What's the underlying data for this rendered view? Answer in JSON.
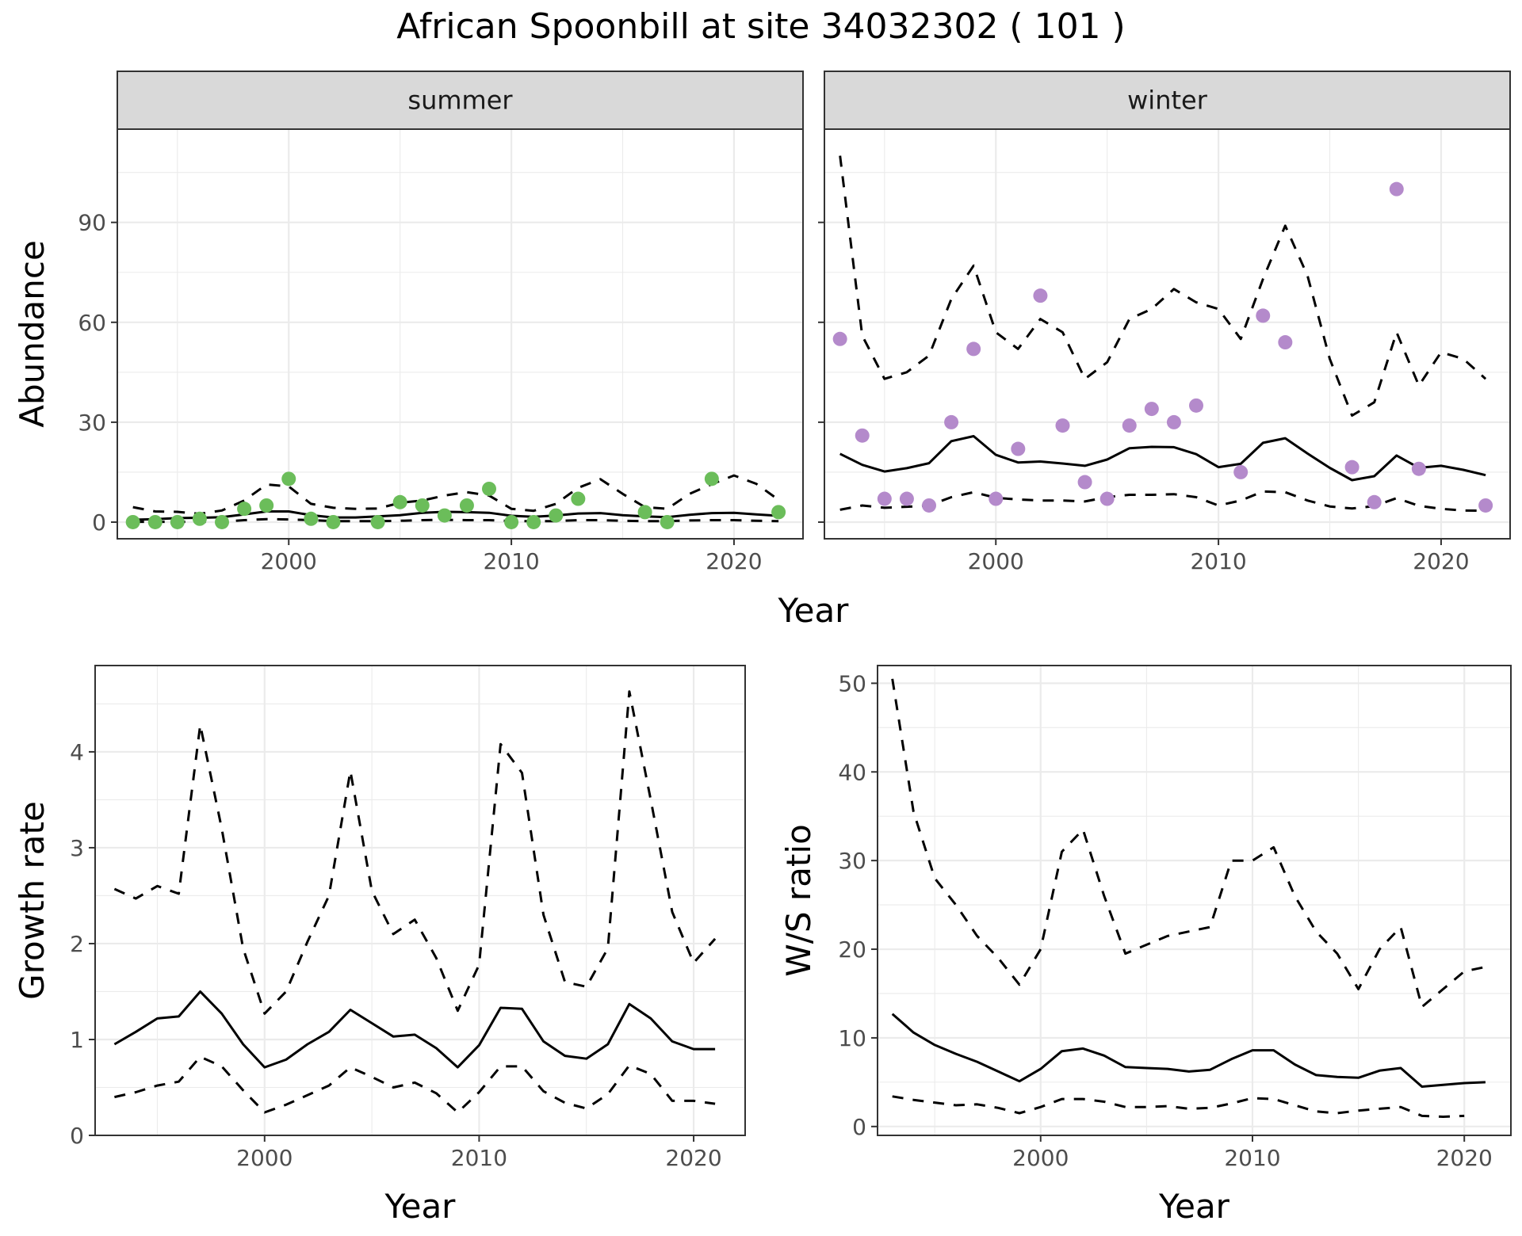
{
  "title": "African Spoonbill at site 34032302 ( 101 )",
  "colors": {
    "summer_points": "#6bbd5a",
    "winter_points": "#b48acb",
    "lines": "#000000"
  },
  "chart_data": [
    {
      "id": "summer",
      "type": "line",
      "strip_label": "summer",
      "xlabel": "Year",
      "ylabel": "Abundance",
      "xlim": [
        1992.3,
        2023.1
      ],
      "ylim": [
        -5,
        118
      ],
      "xticks": [
        2000,
        2010,
        2020
      ],
      "yticks": [
        0,
        30,
        60,
        90
      ],
      "grid": true,
      "x": [
        1993,
        1994,
        1995,
        1996,
        1997,
        1998,
        1999,
        2000,
        2001,
        2002,
        2003,
        2004,
        2005,
        2006,
        2007,
        2008,
        2009,
        2010,
        2011,
        2012,
        2013,
        2014,
        2015,
        2016,
        2017,
        2018,
        2019,
        2020,
        2021,
        2022
      ],
      "series": [
        {
          "role": "mean",
          "values": [
            0.7,
            0.9,
            1.2,
            1.3,
            1.5,
            2.3,
            3.2,
            3.2,
            2.1,
            1.4,
            1.4,
            1.7,
            2.1,
            2.8,
            3.1,
            3.0,
            2.8,
            1.9,
            1.6,
            2.0,
            2.6,
            2.7,
            2.1,
            1.7,
            1.5,
            2.2,
            2.7,
            2.8,
            2.3,
            1.9
          ]
        },
        {
          "role": "ci",
          "values": [
            4.5,
            3.2,
            3.1,
            2.5,
            3.5,
            6.5,
            11.3,
            10.7,
            5.5,
            4.3,
            4.0,
            4.1,
            5.8,
            6.5,
            8.0,
            9.0,
            8.0,
            4.0,
            3.4,
            5.5,
            10.3,
            12.9,
            8.5,
            4.5,
            4.0,
            8.5,
            11.4,
            14.0,
            11.5,
            6.7
          ]
        },
        {
          "role": "ci",
          "values": [
            0.1,
            0.1,
            0.1,
            0.1,
            0.1,
            0.6,
            0.9,
            0.8,
            0.6,
            0.3,
            0.3,
            0.3,
            0.4,
            0.6,
            0.7,
            0.6,
            0.6,
            0.3,
            0.3,
            0.3,
            0.6,
            0.6,
            0.4,
            0.3,
            0.3,
            0.5,
            0.6,
            0.6,
            0.4,
            0.3
          ]
        }
      ],
      "points": {
        "x": [
          1993,
          1994,
          1995,
          1996,
          1997,
          1998,
          1999,
          2000,
          2001,
          2002,
          2004,
          2005,
          2006,
          2007,
          2008,
          2009,
          2010,
          2011,
          2012,
          2013,
          2016,
          2017,
          2019,
          2022
        ],
        "y": [
          0,
          0,
          0,
          1,
          0,
          4,
          5,
          13,
          1,
          0,
          0,
          6,
          5,
          2,
          5,
          10,
          0,
          0,
          2,
          7,
          3,
          0,
          13,
          3
        ]
      }
    },
    {
      "id": "winter",
      "type": "line",
      "strip_label": "winter",
      "xlabel": "Year",
      "ylabel": "Abundance",
      "xlim": [
        1992.3,
        2023.1
      ],
      "ylim": [
        -5,
        118
      ],
      "xticks": [
        2000,
        2010,
        2020
      ],
      "yticks": [
        0,
        30,
        60,
        90
      ],
      "grid": true,
      "x": [
        1993,
        1994,
        1995,
        1996,
        1997,
        1998,
        1999,
        2000,
        2001,
        2002,
        2003,
        2004,
        2005,
        2006,
        2007,
        2008,
        2009,
        2010,
        2011,
        2012,
        2013,
        2014,
        2015,
        2016,
        2017,
        2018,
        2019,
        2020,
        2021,
        2022
      ],
      "series": [
        {
          "role": "mean",
          "values": [
            20.5,
            17.2,
            15.2,
            16.2,
            17.7,
            24.3,
            25.8,
            20.2,
            17.9,
            18.2,
            17.6,
            16.9,
            18.8,
            22.2,
            22.6,
            22.5,
            20.4,
            16.5,
            17.5,
            23.8,
            25.2,
            20.6,
            16.3,
            12.6,
            13.8,
            20.0,
            16.3,
            16.9,
            15.7,
            14.1
          ]
        },
        {
          "role": "ci",
          "values": [
            110,
            56,
            43,
            45,
            50,
            67,
            77,
            57,
            52,
            61,
            57,
            43,
            48,
            61,
            64,
            70,
            66,
            64,
            55,
            73,
            89,
            74,
            49,
            32,
            36,
            57,
            41,
            51,
            49,
            43
          ]
        },
        {
          "role": "ci",
          "values": [
            3.7,
            5.0,
            4.3,
            4.6,
            5.0,
            7.5,
            9.0,
            7.3,
            6.8,
            6.5,
            6.5,
            6.2,
            7.5,
            8.2,
            8.2,
            8.4,
            7.5,
            5.0,
            6.5,
            9.2,
            9.0,
            6.5,
            4.7,
            4.1,
            4.8,
            7.2,
            4.9,
            4.0,
            3.5,
            3.4
          ]
        }
      ],
      "points": {
        "x": [
          1993,
          1994,
          1995,
          1996,
          1997,
          1998,
          1999,
          2000,
          2001,
          2002,
          2003,
          2004,
          2005,
          2006,
          2007,
          2008,
          2009,
          2011,
          2012,
          2013,
          2016,
          2017,
          2018,
          2019,
          2022
        ],
        "y": [
          55,
          26,
          7,
          7,
          5,
          30,
          52,
          7,
          22,
          68,
          29,
          12,
          7,
          29,
          34,
          30,
          35,
          15,
          62,
          54,
          16.5,
          6,
          100,
          16,
          5
        ]
      }
    },
    {
      "id": "growth",
      "type": "line",
      "xlabel": "Year",
      "ylabel": "Growth rate",
      "xlim": [
        1992.1,
        2022.4
      ],
      "ylim": [
        0,
        4.9
      ],
      "xticks": [
        2000,
        2010,
        2020
      ],
      "yticks": [
        0,
        1,
        2,
        3,
        4
      ],
      "grid": true,
      "x": [
        1993,
        1994,
        1995,
        1996,
        1997,
        1998,
        1999,
        2000,
        2001,
        2002,
        2003,
        2004,
        2005,
        2006,
        2007,
        2008,
        2009,
        2010,
        2011,
        2012,
        2013,
        2014,
        2015,
        2016,
        2017,
        2018,
        2019,
        2020,
        2021
      ],
      "series": [
        {
          "role": "mean",
          "values": [
            0.95,
            1.08,
            1.22,
            1.24,
            1.5,
            1.27,
            0.95,
            0.71,
            0.79,
            0.95,
            1.08,
            1.31,
            1.17,
            1.03,
            1.05,
            0.91,
            0.71,
            0.94,
            1.33,
            1.32,
            0.98,
            0.83,
            0.8,
            0.95,
            1.37,
            1.22,
            0.98,
            0.9,
            0.9
          ]
        },
        {
          "role": "ci",
          "values": [
            2.57,
            2.47,
            2.6,
            2.52,
            4.28,
            3.2,
            1.95,
            1.27,
            1.5,
            2.02,
            2.5,
            3.8,
            2.55,
            2.1,
            2.25,
            1.85,
            1.3,
            1.78,
            4.08,
            3.78,
            2.3,
            1.6,
            1.55,
            1.95,
            4.63,
            3.5,
            2.33,
            1.8,
            2.05
          ]
        },
        {
          "role": "ci",
          "values": [
            0.4,
            0.45,
            0.52,
            0.56,
            0.82,
            0.72,
            0.47,
            0.24,
            0.32,
            0.42,
            0.52,
            0.71,
            0.61,
            0.5,
            0.55,
            0.44,
            0.24,
            0.45,
            0.72,
            0.72,
            0.46,
            0.34,
            0.28,
            0.43,
            0.73,
            0.64,
            0.36,
            0.36,
            0.33
          ]
        }
      ]
    },
    {
      "id": "ratio",
      "type": "line",
      "xlabel": "Year",
      "ylabel": "W/S ratio",
      "xlim": [
        1992.3,
        2022.2
      ],
      "ylim": [
        -1,
        52
      ],
      "xticks": [
        2000,
        2010,
        2020
      ],
      "yticks": [
        0,
        10,
        20,
        30,
        40,
        50
      ],
      "grid": true,
      "x": [
        1993,
        1994,
        1995,
        1996,
        1997,
        1998,
        1999,
        2000,
        2001,
        2002,
        2003,
        2004,
        2005,
        2006,
        2007,
        2008,
        2009,
        2010,
        2011,
        2012,
        2013,
        2014,
        2015,
        2016,
        2017,
        2018,
        2019,
        2020,
        2021
      ],
      "series": [
        {
          "role": "mean",
          "values": [
            12.7,
            10.6,
            9.2,
            8.2,
            7.3,
            6.2,
            5.1,
            6.5,
            8.5,
            8.8,
            8.0,
            6.7,
            6.6,
            6.5,
            6.2,
            6.4,
            7.6,
            8.6,
            8.6,
            7.0,
            5.8,
            5.6,
            5.5,
            6.3,
            6.6,
            4.5,
            4.7,
            4.9,
            5.0
          ]
        },
        {
          "role": "ci",
          "values": [
            50.5,
            35.5,
            28.0,
            25.0,
            21.5,
            19.0,
            16.0,
            20.0,
            31.0,
            33.5,
            26.0,
            19.5,
            20.5,
            21.5,
            22.0,
            22.5,
            30.0,
            30.0,
            31.5,
            26.0,
            22.0,
            19.5,
            15.5,
            20.0,
            22.5,
            13.5,
            15.5,
            17.5,
            18.0
          ]
        },
        {
          "role": "ci",
          "values": [
            3.4,
            3.0,
            2.7,
            2.4,
            2.5,
            2.1,
            1.5,
            2.2,
            3.1,
            3.1,
            2.8,
            2.2,
            2.2,
            2.3,
            2.0,
            2.1,
            2.6,
            3.2,
            3.1,
            2.4,
            1.7,
            1.5,
            1.8,
            2.0,
            2.2,
            1.2,
            1.1,
            1.2,
            null
          ]
        }
      ]
    }
  ]
}
